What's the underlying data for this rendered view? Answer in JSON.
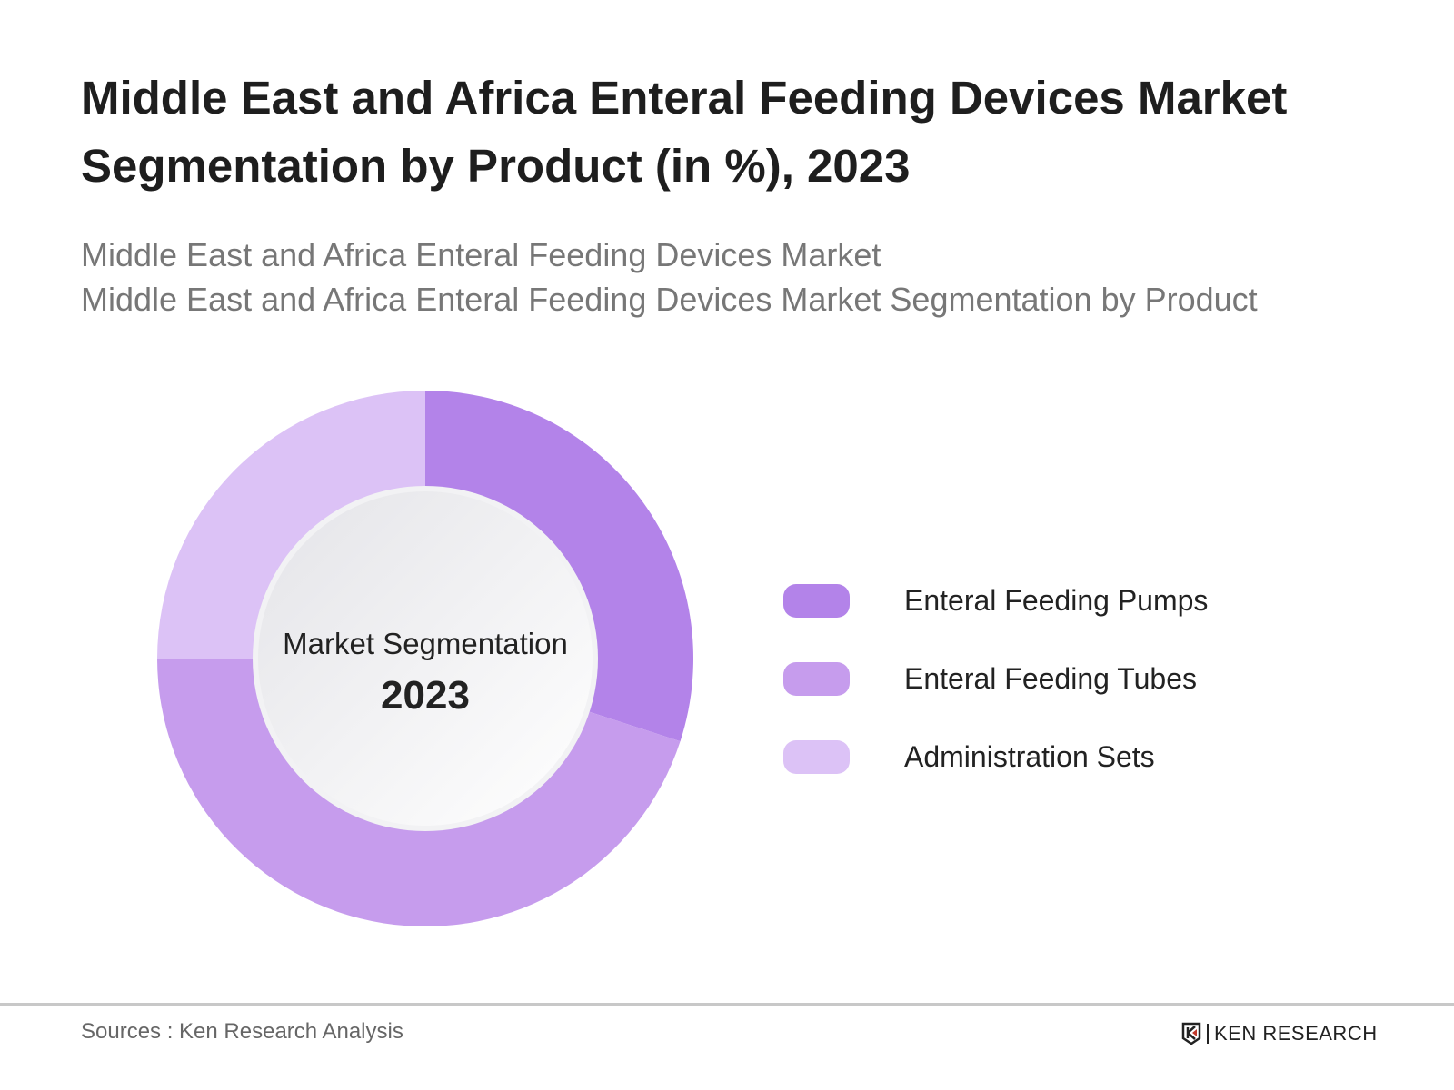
{
  "title": "Middle East and Africa Enteral Feeding Devices Market Segmentation by Product (in %), 2023",
  "subtitle_lines": [
    "Middle East and Africa Enteral Feeding Devices Market",
    "Middle East and Africa Enteral Feeding Devices Market Segmentation by Product"
  ],
  "chart_data": {
    "type": "pie",
    "variant": "donut",
    "center_label": "Market Segmentation",
    "center_year": "2023",
    "categories": [
      "Enteral Feeding Pumps",
      "Enteral Feeding Tubes",
      "Administration Sets"
    ],
    "values": [
      30,
      45,
      25
    ],
    "unit": "%",
    "colors": [
      "#b383e9",
      "#c69ced",
      "#dcc2f6"
    ],
    "legend_position": "right"
  },
  "footer": {
    "source": "Sources : Ken Research Analysis",
    "logo_text": "KEN RESEARCH"
  }
}
